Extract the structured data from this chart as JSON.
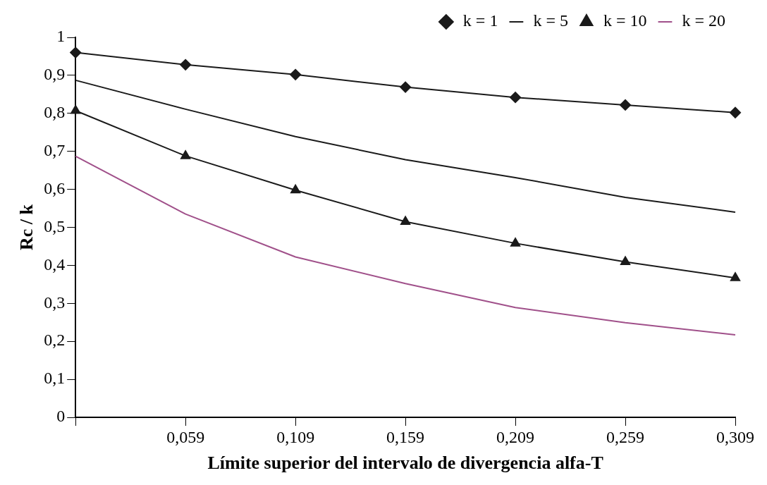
{
  "chart_data": {
    "type": "line",
    "xlabel": "Límite superior del intervalo de divergencia alfa-T",
    "ylabel": "Rc / k",
    "categories": [
      null,
      "0,059",
      "0,109",
      "0,159",
      "0,209",
      "0,259",
      "0,309"
    ],
    "ylim": [
      0,
      1
    ],
    "yticks": [
      {
        "value": 0,
        "label": "0"
      },
      {
        "value": 0.1,
        "label": "0,1"
      },
      {
        "value": 0.2,
        "label": "0,2"
      },
      {
        "value": 0.3,
        "label": "0,3"
      },
      {
        "value": 0.4,
        "label": "0,4"
      },
      {
        "value": 0.5,
        "label": "0,5"
      },
      {
        "value": 0.6,
        "label": "0,6"
      },
      {
        "value": 0.7,
        "label": "0,7"
      },
      {
        "value": 0.8,
        "label": "0,8"
      },
      {
        "value": 0.9,
        "label": "0,9"
      },
      {
        "value": 1,
        "label": "1"
      }
    ],
    "grid": false,
    "legend": "top right",
    "series": [
      {
        "name": "k = 1",
        "color": "#1a1a1a",
        "marker": "diamond",
        "values": [
          0.96,
          0.928,
          0.902,
          0.869,
          0.842,
          0.822,
          0.802
        ]
      },
      {
        "name": "k = 5",
        "color": "#1a1a1a",
        "marker": "none",
        "values": [
          0.887,
          0.811,
          0.739,
          0.678,
          0.631,
          0.579,
          0.54
        ]
      },
      {
        "name": "k = 10",
        "color": "#1a1a1a",
        "marker": "triangle",
        "values": [
          0.807,
          0.688,
          0.598,
          0.515,
          0.458,
          0.409,
          0.367
        ]
      },
      {
        "name": "k = 20",
        "color": "#a0508a",
        "marker": "none",
        "values": [
          0.687,
          0.535,
          0.422,
          0.352,
          0.289,
          0.249,
          0.217
        ]
      }
    ]
  }
}
